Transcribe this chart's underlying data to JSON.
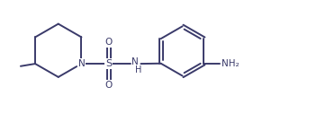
{
  "bg_color": "#ffffff",
  "line_color": "#3a3a6a",
  "line_width": 1.4,
  "text_color": "#3a3a6a",
  "font_size": 7.5,
  "fig_width": 3.72,
  "fig_height": 1.26,
  "dpi": 100,
  "xlim": [
    0,
    10.5
  ],
  "ylim": [
    -0.5,
    3.2
  ]
}
